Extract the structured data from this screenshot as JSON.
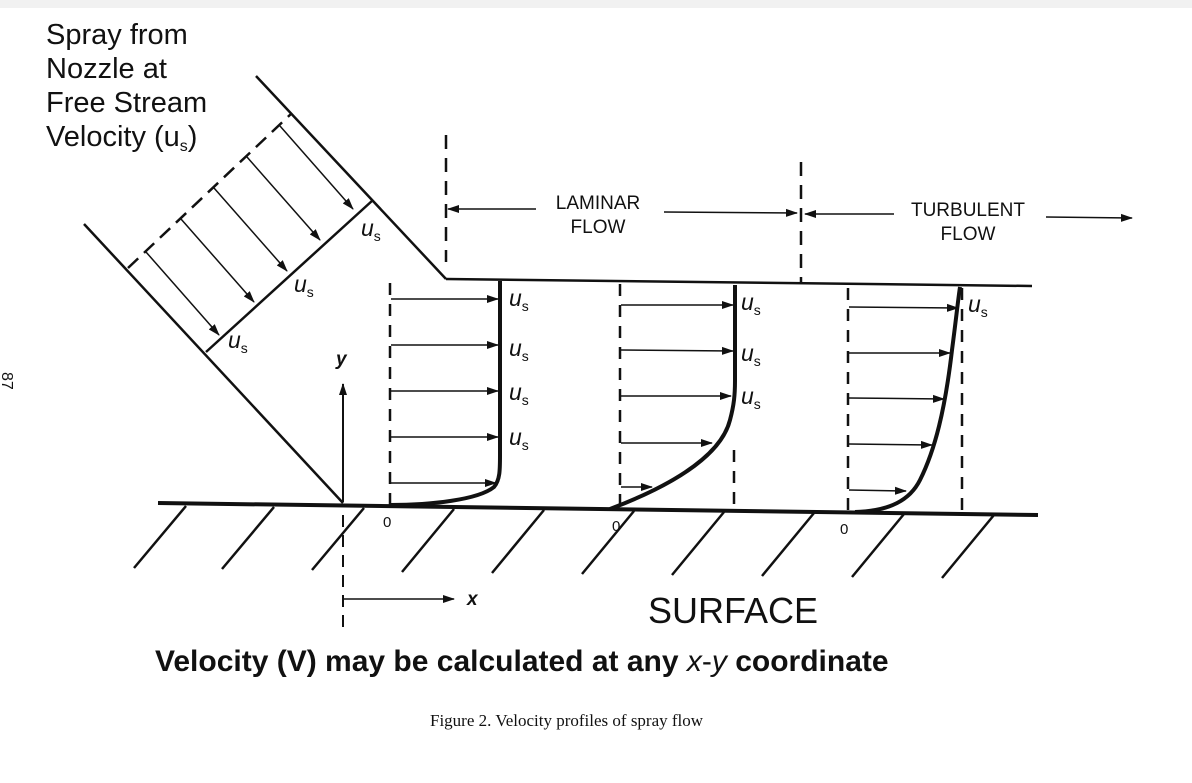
{
  "page_number": "87",
  "nozzle_label": [
    "Spray from",
    "Nozzle at",
    "Free Stream",
    "Velocity (u",
    "s",
    ")"
  ],
  "us_symbol": "u",
  "us_subscript": "s",
  "laminar_label": [
    "LAMINAR",
    "FLOW"
  ],
  "turbulent_label": [
    "TURBULENT",
    "FLOW"
  ],
  "axis_y": "y",
  "axis_x": "x",
  "origin_label": "0",
  "surface_label": "SURFACE",
  "statement": [
    "Velocity (V) may be calculated at any ",
    "x",
    "-",
    "y",
    " coordinate"
  ],
  "caption": "Figure 2. Velocity profiles of spray flow"
}
